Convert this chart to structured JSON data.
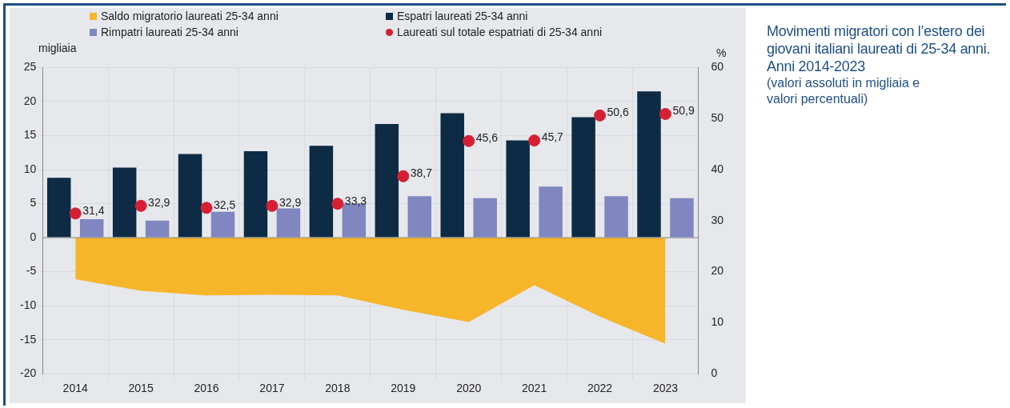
{
  "chart_data": {
    "type": "bar",
    "title": "Movimenti migratori con l’estero dei giovani italiani laureati di 25-34 anni. Anni 2014-2023",
    "subtitle": "(valori assoluti in migliaia e valori percentuali)",
    "ylabel": "migliaia",
    "y2label": "%",
    "categories": [
      "2014",
      "2015",
      "2016",
      "2017",
      "2018",
      "2019",
      "2020",
      "2021",
      "2022",
      "2023"
    ],
    "series": [
      {
        "name": "Saldo migratorio laureati 25-34 anni",
        "type": "area",
        "color": "#f7b52a",
        "values": [
          -6.1,
          -7.8,
          -8.5,
          -8.4,
          -8.5,
          -10.6,
          -12.4,
          -7.0,
          -11.6,
          -15.6
        ]
      },
      {
        "name": "Espatri laureati 25-34 anni",
        "color": "#0d2b45",
        "values": [
          8.8,
          10.3,
          12.3,
          12.7,
          13.5,
          16.7,
          18.3,
          14.3,
          17.7,
          21.5
        ]
      },
      {
        "name": "Rimpatri laureati 25-34 anni",
        "color": "#7f86c0",
        "values": [
          2.7,
          2.5,
          3.8,
          4.3,
          5.0,
          6.1,
          5.8,
          7.5,
          6.1,
          5.8
        ]
      },
      {
        "name": "Laureati sul totale espatriati di 25-34 anni",
        "type": "scatter",
        "axis": "y2",
        "marker": "circle",
        "color": "#d71f33",
        "values": [
          31.4,
          32.9,
          32.5,
          32.9,
          33.3,
          38.7,
          45.6,
          45.7,
          50.6,
          50.9
        ],
        "value_labels": [
          "31,4",
          "32,9",
          "32,5",
          "32,9",
          "33,3",
          "38,7",
          "45,6",
          "45,7",
          "50,6",
          "50,9"
        ]
      }
    ],
    "ylim": [
      -20,
      25
    ],
    "yticks": [
      -20,
      -15,
      -10,
      -5,
      0,
      5,
      10,
      15,
      20,
      25
    ],
    "y2lim": [
      0,
      60
    ],
    "y2ticks": [
      0,
      10,
      20,
      30,
      40,
      50,
      60
    ],
    "grid": true,
    "legend": "top"
  }
}
